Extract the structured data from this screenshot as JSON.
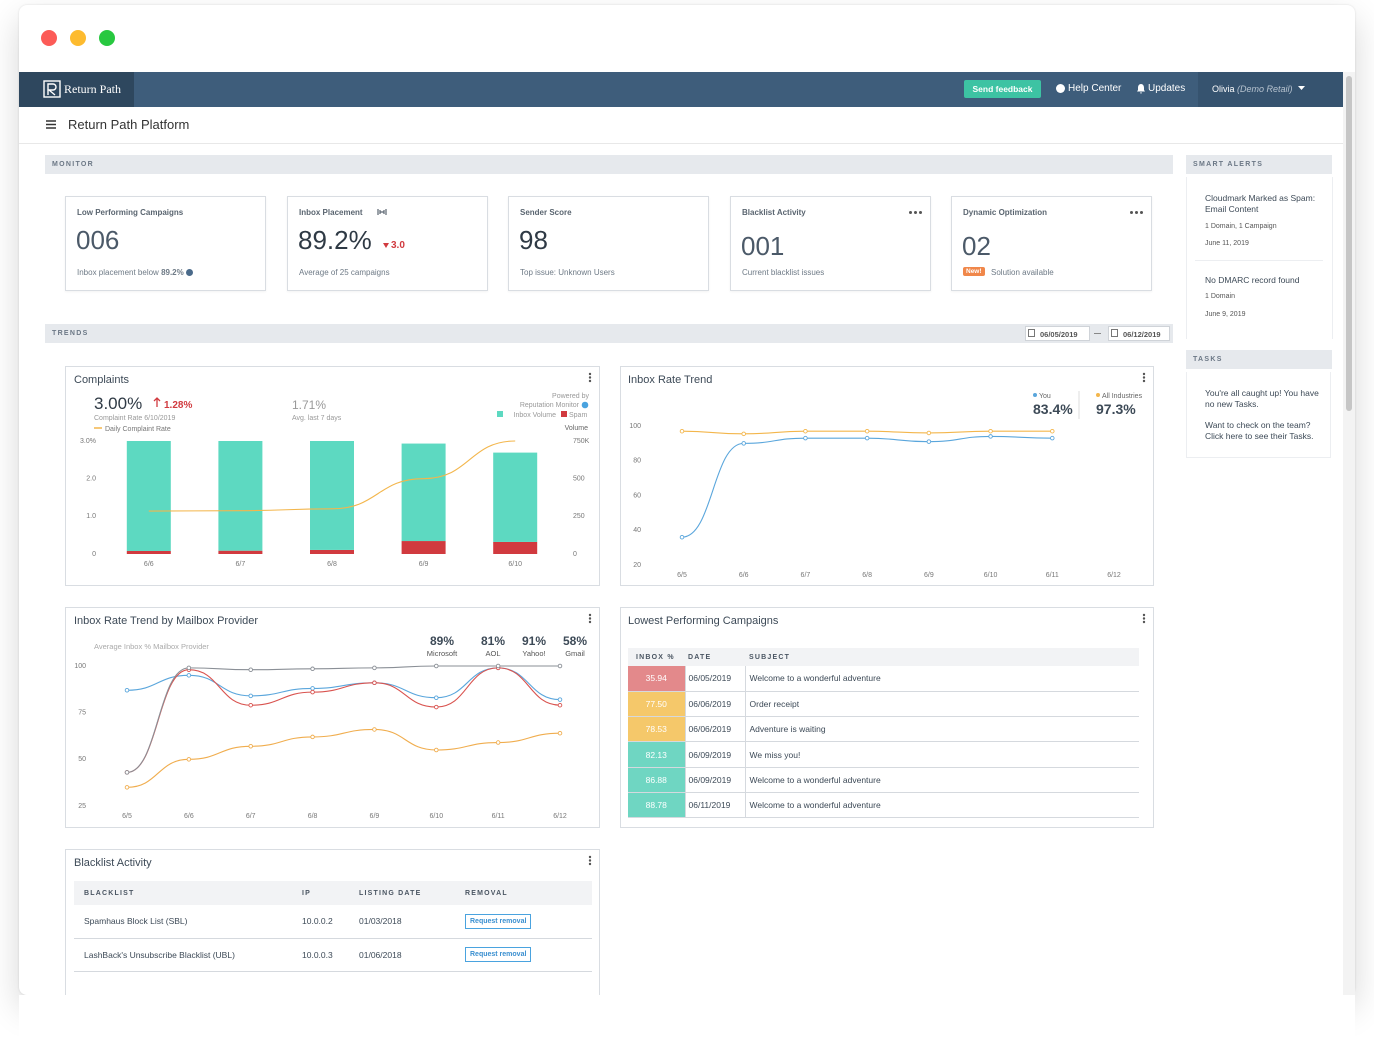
{
  "nav": {
    "logo": "Return Path",
    "feedback": "Send feedback",
    "help": "Help Center",
    "updates": "Updates",
    "user": "Olivia",
    "account": "(Demo Retail)"
  },
  "page_title": "Return Path Platform",
  "monitor": {
    "label": "MONITOR",
    "cards": [
      {
        "title": "Low Performing Campaigns",
        "value": "006",
        "note": "Inbox placement below",
        "note_value": "89.2%"
      },
      {
        "title": "Inbox Placement",
        "value": "89.2%",
        "change": "3.0",
        "note": "Average of 25 campaigns"
      },
      {
        "title": "Sender Score",
        "value": "98",
        "note": "Top issue: Unknown Users"
      },
      {
        "title": "Blacklist Activity",
        "value": "001",
        "note": "Current blacklist issues"
      },
      {
        "title": "Dynamic Optimization",
        "value": "02",
        "badge": "New!",
        "note": "Solution available"
      }
    ]
  },
  "smart_alerts": {
    "label": "SMART ALERTS",
    "items": [
      {
        "title": "Cloudmark Marked as Spam: Email Content",
        "detail": "1 Domain, 1 Campaign",
        "date": "June 11, 2019"
      },
      {
        "title": "No DMARC record found",
        "detail": "1 Domain",
        "date": "June 9, 2019"
      }
    ]
  },
  "tasks": {
    "label": "TASKS",
    "lines": [
      "You're all caught up! You have no new Tasks.",
      "Want to check on the team? Click here to see their Tasks."
    ]
  },
  "trends": {
    "label": "TRENDS",
    "date_from": "06/05/2019",
    "date_to": "06/12/2019"
  },
  "complaints": {
    "title": "Complaints",
    "headline": "3.00%",
    "change": "1.28%",
    "caption": "Complaint Rate 6/10/2019",
    "average": "1.71%",
    "average_caption": "Avg. last 7 days",
    "powered_by": "Powered by",
    "source": "Reputation Monitor",
    "chart": {
      "type": "bar",
      "stacked": true,
      "categories": [
        "6/6",
        "6/7",
        "6/8",
        "6/9",
        "6/10"
      ],
      "series": [
        {
          "name": "Spam",
          "color": "#d13a3f",
          "axis": "y2",
          "values": [
            20,
            22,
            27,
            86,
            80
          ]
        },
        {
          "name": "Inbox Volume",
          "color": "#5dd9c1",
          "axis": "y2",
          "values": [
            730,
            728,
            723,
            647,
            593
          ]
        },
        {
          "name": "Daily Complaint Rate",
          "type": "line",
          "color": "#f3b64c",
          "values": [
            1.14,
            1.15,
            1.2,
            2.0,
            3.0
          ]
        }
      ],
      "ylim": [
        0,
        3
      ],
      "yticks": [
        {
          "value": 3,
          "label": "3.0%"
        },
        {
          "value": 2,
          "label": "2.0"
        },
        {
          "value": 1,
          "label": "1.0"
        },
        0
      ],
      "y2label": "Volume",
      "y2lim": [
        0,
        750
      ],
      "y2ticks": [
        {
          "value": 750,
          "label": "750K"
        },
        500,
        250,
        0
      ]
    }
  },
  "inbox_trend": {
    "title": "Inbox Rate Trend",
    "chart": {
      "type": "line",
      "categories": [
        "6/5",
        "6/6",
        "6/7",
        "6/8",
        "6/9",
        "6/10",
        "6/11",
        "6/12"
      ],
      "series": [
        {
          "name": "You",
          "current": "83.4%",
          "color": "#5aa6dc",
          "values": [
            36,
            90,
            93,
            93,
            91,
            94,
            93,
            null
          ]
        },
        {
          "name": "All Industries",
          "current": "97.3%",
          "color": "#f3b64c",
          "values": [
            97,
            95.5,
            97,
            97,
            96,
            97,
            97,
            null
          ]
        }
      ],
      "ylim": [
        20,
        100
      ],
      "yticks": [
        100,
        80,
        60,
        40,
        20
      ]
    }
  },
  "mailbox": {
    "title": "Inbox Rate Trend by Mailbox Provider",
    "subtitle": "Average Inbox % Mailbox Provider",
    "chart": {
      "type": "line",
      "smooth": true,
      "categories": [
        "6/5",
        "6/6",
        "6/7",
        "6/8",
        "6/9",
        "6/10",
        "6/11",
        "6/12"
      ],
      "series": [
        {
          "name": "Microsoft",
          "average": "89%",
          "color": "#5aa6dc",
          "values": [
            87,
            95,
            84,
            88,
            91,
            83,
            99,
            82
          ]
        },
        {
          "name": "AOL",
          "average": "81%",
          "color": "#d9534f",
          "values": [
            43,
            98,
            79,
            86,
            91,
            78,
            99,
            79
          ]
        },
        {
          "name": "Yahoo!",
          "average": "91%",
          "color": "#8a8f96",
          "values": [
            43,
            99,
            98,
            98.5,
            99,
            100,
            100,
            100
          ]
        },
        {
          "name": "Gmail",
          "average": "58%",
          "color": "#f0ad4e",
          "values": [
            35,
            50,
            57,
            62,
            66,
            55,
            59,
            64
          ]
        }
      ],
      "ylim": [
        25,
        100
      ],
      "yticks": [
        100,
        75,
        50,
        25
      ]
    }
  },
  "lowest": {
    "title": "Lowest Performing Campaigns",
    "headers": [
      "INBOX %",
      "DATE",
      "SUBJECT"
    ],
    "rows": [
      {
        "inbox": "35.94",
        "date": "06/05/2019",
        "subject": "Welcome to a wonderful adventure",
        "color": "#e3898b"
      },
      {
        "inbox": "77.50",
        "date": "06/06/2019",
        "subject": "Order receipt",
        "color": "#f5c86a"
      },
      {
        "inbox": "78.53",
        "date": "06/06/2019",
        "subject": "Adventure is waiting",
        "color": "#f5c86a"
      },
      {
        "inbox": "82.13",
        "date": "06/09/2019",
        "subject": "We miss you!",
        "color": "#6fd6c2"
      },
      {
        "inbox": "86.88",
        "date": "06/09/2019",
        "subject": "Welcome to a wonderful adventure",
        "color": "#6fd6c2"
      },
      {
        "inbox": "88.78",
        "date": "06/11/2019",
        "subject": "Welcome to a wonderful adventure",
        "color": "#6fd6c2"
      }
    ]
  },
  "blacklist": {
    "title": "Blacklist Activity",
    "headers": [
      "BLACKLIST",
      "IP",
      "LISTING DATE",
      "REMOVAL"
    ],
    "rows": [
      {
        "name": "Spamhaus Block List (SBL)",
        "ip": "10.0.0.2",
        "date": "01/03/2018",
        "action": "Request removal"
      },
      {
        "name": "LashBack's Unsubscribe Blacklist (UBL)",
        "ip": "10.0.0.3",
        "date": "01/06/2018",
        "action": "Request removal"
      }
    ]
  }
}
